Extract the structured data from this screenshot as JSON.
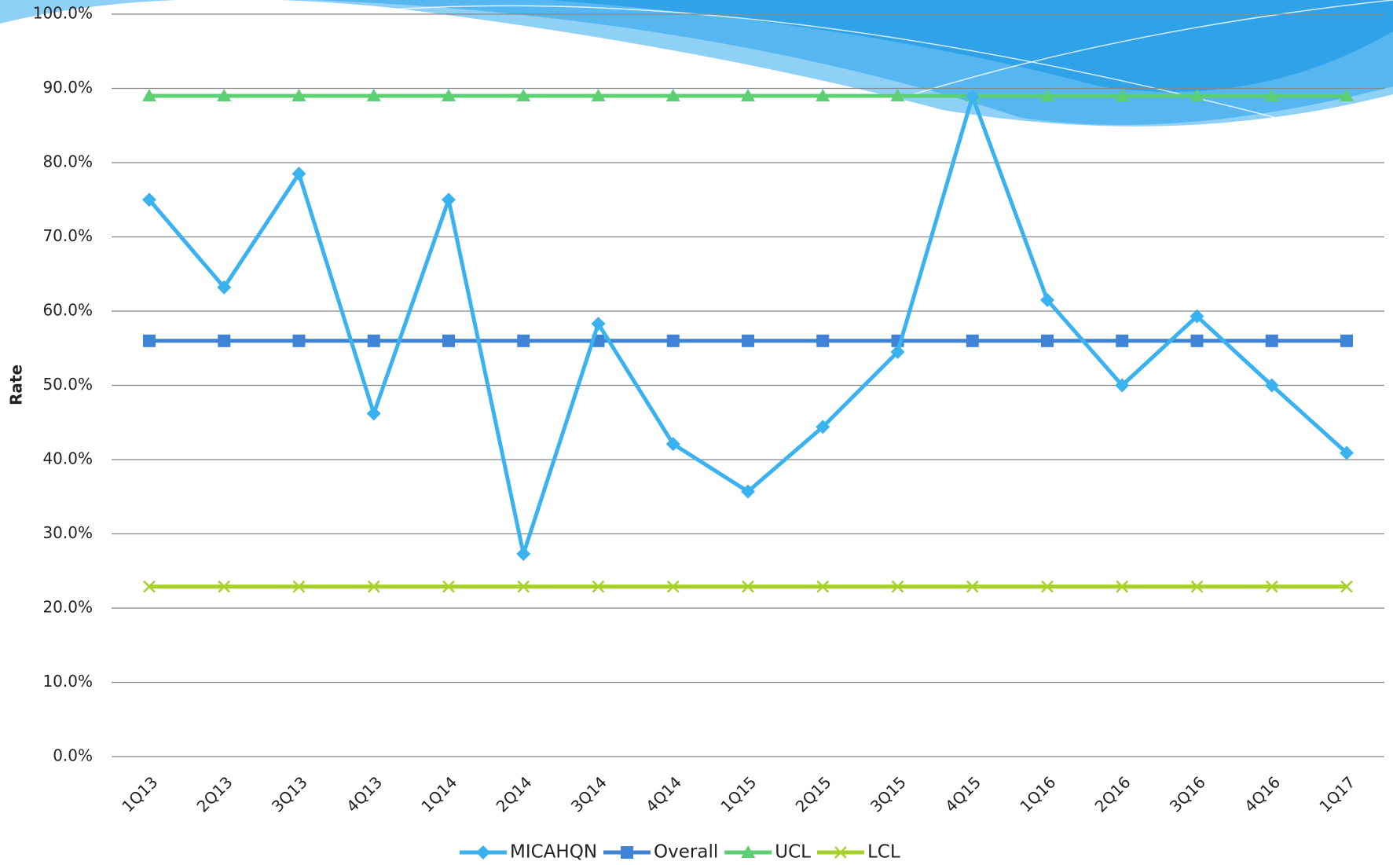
{
  "chart_data": {
    "type": "line",
    "y_label": "Rate",
    "categories": [
      "1Q13",
      "2Q13",
      "3Q13",
      "4Q13",
      "1Q14",
      "2Q14",
      "3Q14",
      "4Q14",
      "1Q15",
      "2Q15",
      "3Q15",
      "4Q15",
      "1Q16",
      "2Q16",
      "3Q16",
      "4Q16",
      "1Q17"
    ],
    "series": [
      {
        "name": "MICAHQN",
        "color": "#3bb2f0",
        "marker": "diamond",
        "values": [
          75.0,
          63.2,
          78.5,
          46.2,
          75.0,
          27.3,
          58.3,
          42.1,
          35.7,
          44.4,
          54.5,
          88.9,
          61.5,
          50.0,
          59.3,
          50.0,
          40.9
        ]
      },
      {
        "name": "Overall",
        "color": "#3f83d6",
        "marker": "square",
        "values": [
          56.0,
          56.0,
          56.0,
          56.0,
          56.0,
          56.0,
          56.0,
          56.0,
          56.0,
          56.0,
          56.0,
          56.0,
          56.0,
          56.0,
          56.0,
          56.0,
          56.0
        ]
      },
      {
        "name": "UCL",
        "color": "#5ccf72",
        "marker": "triangle",
        "values": [
          89.0,
          89.0,
          89.0,
          89.0,
          89.0,
          89.0,
          89.0,
          89.0,
          89.0,
          89.0,
          89.0,
          89.0,
          89.0,
          89.0,
          89.0,
          89.0,
          89.0
        ]
      },
      {
        "name": "LCL",
        "color": "#a6d12b",
        "marker": "x",
        "values": [
          22.9,
          22.9,
          22.9,
          22.9,
          22.9,
          22.9,
          22.9,
          22.9,
          22.9,
          22.9,
          22.9,
          22.9,
          22.9,
          22.9,
          22.9,
          22.9,
          22.9
        ]
      }
    ],
    "ylim": [
      0,
      100
    ],
    "yticks": [
      {
        "value": 0,
        "label": "0.0%"
      },
      {
        "value": 10,
        "label": "10.0%"
      },
      {
        "value": 20,
        "label": "20.0%"
      },
      {
        "value": 30,
        "label": "30.0%"
      },
      {
        "value": 40,
        "label": "40.0%"
      },
      {
        "value": 50,
        "label": "50.0%"
      },
      {
        "value": 60,
        "label": "60.0%"
      },
      {
        "value": 70,
        "label": "70.0%"
      },
      {
        "value": 80,
        "label": "80.0%"
      },
      {
        "value": 90,
        "label": "90.0%"
      },
      {
        "value": 100,
        "label": "100.0%"
      }
    ],
    "grid": true,
    "legend": "bottom"
  }
}
